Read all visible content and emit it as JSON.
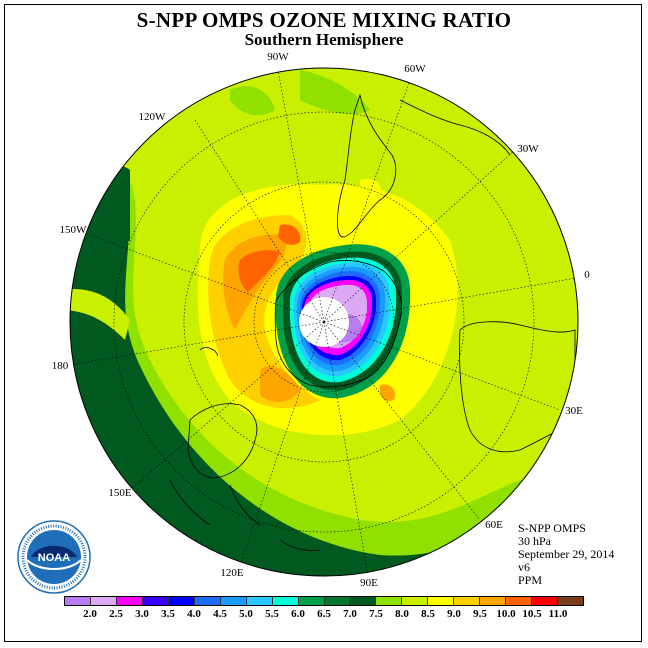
{
  "title": "S-NPP OMPS OZONE MIXING RATIO",
  "subtitle": "Southern Hemisphere",
  "meta": {
    "instrument": "S-NPP OMPS",
    "level": "30 hPa",
    "date": "September 29, 2014",
    "version": "v6",
    "units": "PPM"
  },
  "longitude_labels": [
    "90W",
    "60W",
    "120W",
    "30W",
    "150W",
    "0",
    "180",
    "30E",
    "150E",
    "60E",
    "120E",
    "90E"
  ],
  "logo": {
    "name": "NOAA",
    "ring_color": "#1f6fb8",
    "inner_color": "#0a2a6e"
  },
  "colorbar": {
    "colors": [
      "#b77cf0",
      "#dcaaf5",
      "#ff00ff",
      "#3a00ff",
      "#0000ff",
      "#1e6cff",
      "#199cff",
      "#28c8ff",
      "#00ffd8",
      "#00a04a",
      "#007830",
      "#005a20",
      "#90e000",
      "#c8f000",
      "#ffff00",
      "#ffd000",
      "#ffa500",
      "#ff6400",
      "#ff0000",
      "#7a3c1c"
    ],
    "ticks": [
      "2.0",
      "2.5",
      "3.0",
      "3.5",
      "4.0",
      "4.5",
      "5.0",
      "5.5",
      "6.0",
      "6.5",
      "7.0",
      "7.5",
      "8.0",
      "8.5",
      "9.0",
      "9.5",
      "10.0",
      "10.5",
      "11.0"
    ]
  }
}
